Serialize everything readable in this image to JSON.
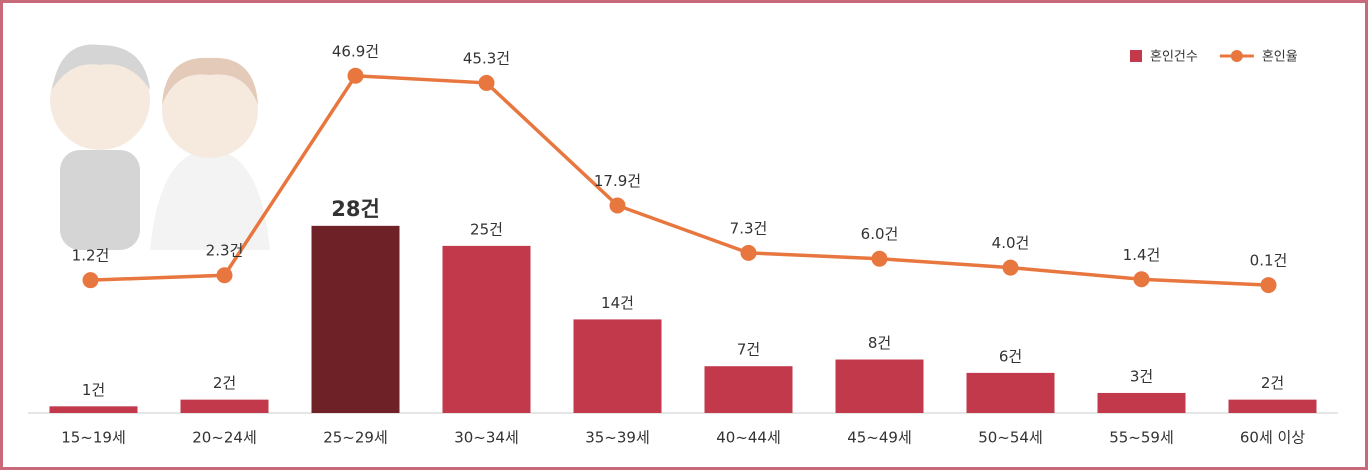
{
  "chart_data": {
    "type": "bar-line",
    "categories": [
      "15~19세",
      "20~24세",
      "25~29세",
      "30~34세",
      "35~39세",
      "40~44세",
      "45~49세",
      "50~54세",
      "55~59세",
      "60세 이상"
    ],
    "series": [
      {
        "name": "혼인건수",
        "type": "bar",
        "color": "#c1394b",
        "colors": [
          "#c1394b",
          "#c1394b",
          "#6e2228",
          "#c1394b",
          "#c1394b",
          "#c1394b",
          "#c1394b",
          "#c1394b",
          "#c1394b",
          "#c1394b"
        ],
        "values": [
          1,
          2,
          28,
          25,
          14,
          7,
          8,
          6,
          3,
          2
        ],
        "value_labels": [
          "1건",
          "2건",
          "28건",
          "25건",
          "14건",
          "7건",
          "8건",
          "6건",
          "3건",
          "2건"
        ]
      },
      {
        "name": "혼인율",
        "type": "line",
        "axis": "y2",
        "color": "#e8773f",
        "values": [
          1.2,
          2.3,
          46.9,
          45.3,
          17.9,
          7.3,
          6.0,
          4.0,
          1.4,
          0.1
        ],
        "value_labels": [
          "1.2건",
          "2.3건",
          "46.9건",
          "45.3건",
          "17.9건",
          "7.3건",
          "6.0건",
          "4.0건",
          "1.4건",
          "0.1건"
        ]
      }
    ],
    "ylim": [
      0,
      55.8
    ],
    "y2lim": [
      -28.5,
      54.9
    ],
    "legend": "upper right"
  }
}
